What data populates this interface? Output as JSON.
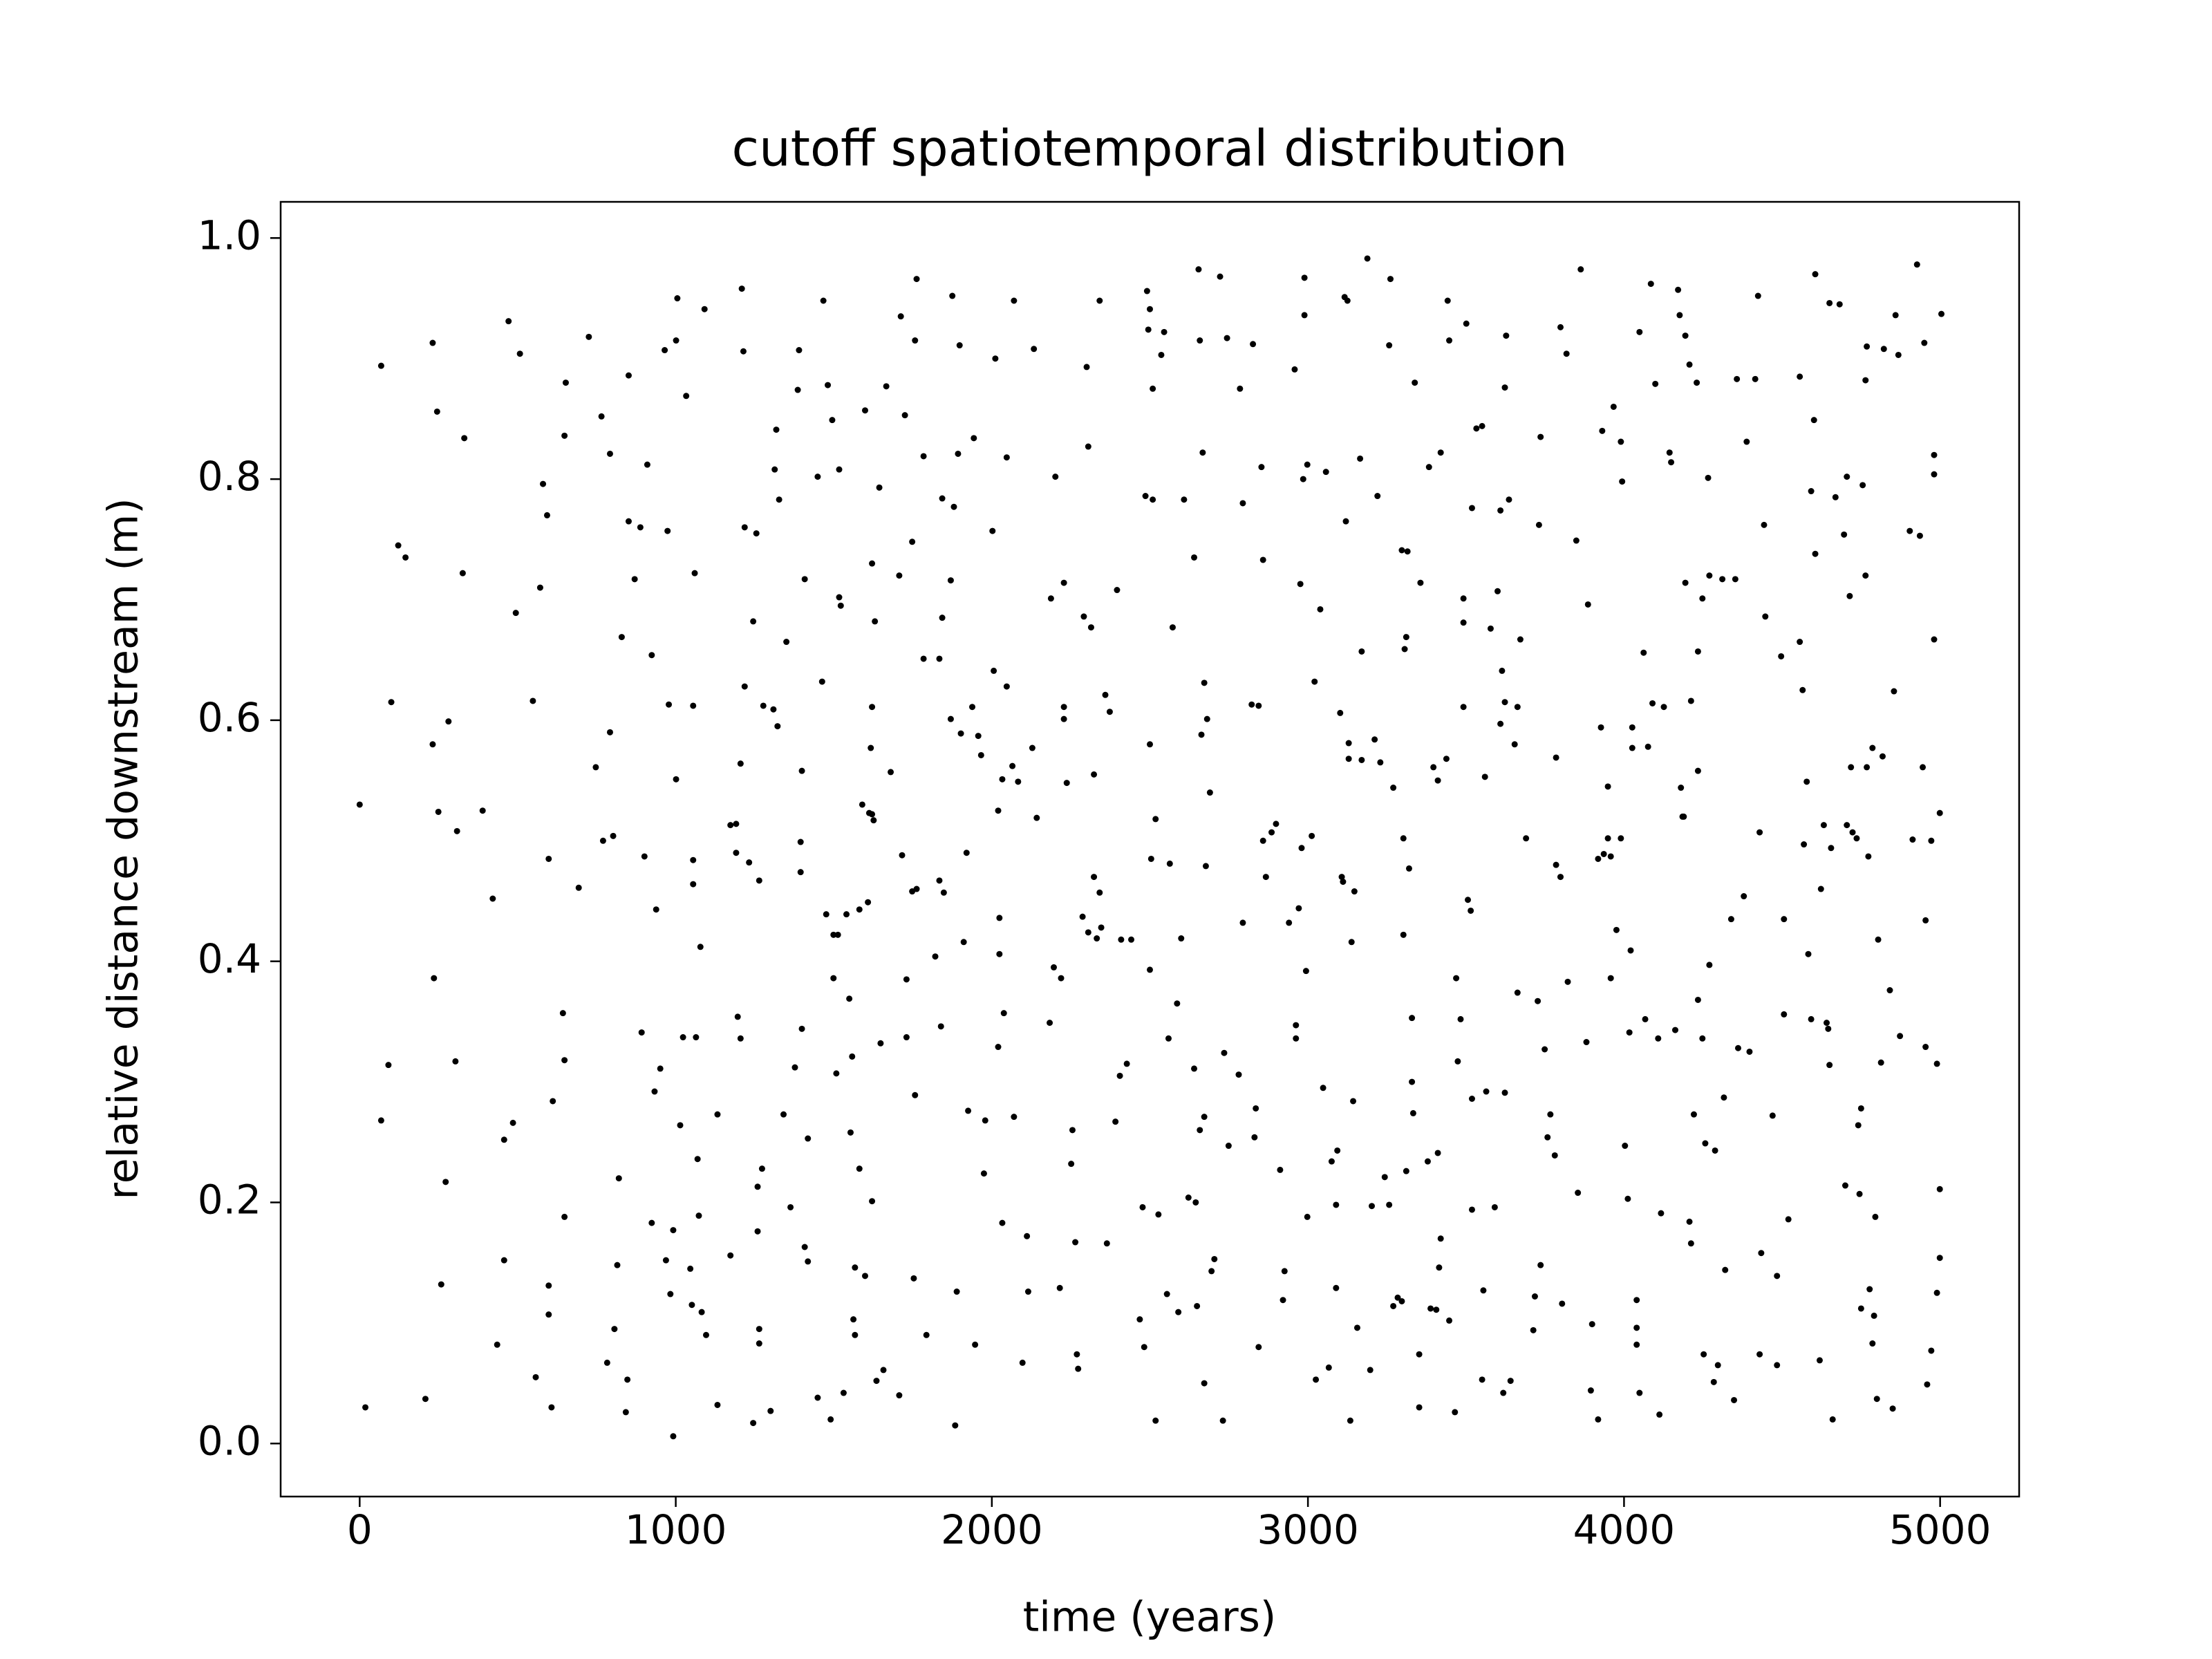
{
  "chart_data": {
    "type": "scatter",
    "title": "cutoff spatiotemporal distribution",
    "xlabel": "time (years)",
    "ylabel": "relative distance downstream (m)",
    "color": "#000000",
    "xlim": [
      -250,
      5250
    ],
    "ylim": [
      -0.044,
      1.03
    ],
    "xticks": [
      0,
      1000,
      2000,
      3000,
      4000,
      5000
    ],
    "yticks": [
      {
        "value": 0,
        "label": "0.0"
      },
      0.2,
      0.4,
      0.6,
      0.8,
      {
        "value": 1,
        "label": "1.0"
      }
    ],
    "x": [
      0,
      18,
      68,
      68,
      91,
      100,
      122,
      145,
      208,
      231,
      231,
      235,
      245,
      249,
      258,
      272,
      281,
      303,
      308,
      326,
      331,
      389,
      421,
      435,
      457,
      457,
      471,
      485,
      494,
      507,
      548,
      557,
      571,
      580,
      593,
      598,
      598,
      598,
      607,
      611,
      643,
      648,
      648,
      652,
      648,
      693,
      725,
      747,
      765,
      770,
      783,
      792,
      792,
      802,
      806,
      815,
      820,
      829,
      842,
      847,
      851,
      851,
      870,
      888,
      892,
      901,
      910,
      924,
      924,
      933,
      938,
      951,
      965,
      969,
      974,
      978,
      983,
      992,
      992,
      1001,
      1005,
      1001,
      1014,
      1023,
      1033,
      1046,
      1051,
      1055,
      1055,
      1055,
      1060,
      1064,
      1069,
      1073,
      1078,
      1082,
      1091,
      1096,
      1132,
      1132,
      1173,
      1173,
      1191,
      1191,
      1196,
      1205,
      1205,
      1209,
      1214,
      1218,
      1218,
      1232,
      1245,
      1245,
      1255,
      1259,
      1259,
      1264,
      1264,
      1264,
      1273,
      1277,
      1300,
      1309,
      1313,
      1318,
      1322,
      1327,
      1341,
      1350,
      1363,
      1377,
      1386,
      1390,
      1395,
      1395,
      1399,
      1399,
      1408,
      1408,
      1418,
      1418,
      1449,
      1449,
      1463,
      1467,
      1476,
      1481,
      1490,
      1495,
      1499,
      1499,
      1508,
      1517,
      1522,
      1517,
      1513,
      1531,
      1540,
      1549,
      1553,
      1558,
      1562,
      1567,
      1567,
      1581,
      1581,
      1590,
      1599,
      1599,
      1608,
      1612,
      1617,
      1621,
      1621,
      1621,
      1621,
      1626,
      1630,
      1635,
      1644,
      1648,
      1657,
      1666,
      1680,
      1707,
      1707,
      1712,
      1716,
      1725,
      1730,
      1730,
      1748,
      1753,
      1757,
      1757,
      1748,
      1762,
      1784,
      1784,
      1793,
      1762,
      1821,
      1834,
      1839,
      1843,
      1843,
      1834,
      1848,
      1870,
      1870,
      1875,
      1880,
      1889,
      1884,
      1893,
      1898,
      1902,
      1911,
      1920,
      1925,
      1943,
      1938,
      1947,
      1957,
      1966,
      1975,
      1979,
      2002,
      2006,
      2011,
      2020,
      2020,
      2024,
      2024,
      2033,
      2033,
      2038,
      2047,
      2047,
      2065,
      2070,
      2070,
      2083,
      2097,
      2111,
      2115,
      2128,
      2133,
      2142,
      2183,
      2187,
      2196,
      2201,
      2215,
      2219,
      2228,
      2228,
      2228,
      2237,
      2251,
      2255,
      2264,
      2269,
      2273,
      2287,
      2291,
      2300,
      2305,
      2305,
      2314,
      2323,
      2323,
      2332,
      2341,
      2341,
      2346,
      2359,
      2364,
      2373,
      2391,
      2396,
      2405,
      2409,
      2427,
      2441,
      2468,
      2477,
      2482,
      2486,
      2491,
      2495,
      2500,
      2500,
      2500,
      2504,
      2509,
      2509,
      2518,
      2518,
      2527,
      2536,
      2545,
      2554,
      2559,
      2563,
      2572,
      2586,
      2590,
      2599,
      2608,
      2622,
      2640,
      2640,
      2645,
      2649,
      2654,
      2658,
      2658,
      2663,
      2667,
      2672,
      2672,
      2672,
      2677,
      2681,
      2690,
      2695,
      2704,
      2722,
      2731,
      2735,
      2744,
      2749,
      2781,
      2785,
      2794,
      2794,
      2826,
      2822,
      2831,
      2835,
      2844,
      2844,
      2853,
      2858,
      2858,
      2867,
      2885,
      2899,
      2912,
      2921,
      2926,
      2940,
      2958,
      2962,
      2962,
      2971,
      2976,
      2980,
      2985,
      2989,
      2989,
      2994,
      2998,
      2998,
      3012,
      3021,
      3025,
      3039,
      3048,
      3057,
      3066,
      3075,
      3089,
      3089,
      3093,
      3102,
      3107,
      3111,
      3116,
      3125,
      3129,
      3129,
      3120,
      3134,
      3138,
      3143,
      3147,
      3156,
      3165,
      3170,
      3170,
      3188,
      3197,
      3202,
      3211,
      3220,
      3229,
      3243,
      3257,
      3257,
      3261,
      3270,
      3270,
      3284,
      3297,
      3297,
      3302,
      3302,
      3306,
      3311,
      3311,
      3315,
      3320,
      3329,
      3329,
      3333,
      3338,
      3352,
      3352,
      3356,
      3379,
      3383,
      3388,
      3397,
      3406,
      3411,
      3411,
      3415,
      3420,
      3420,
      3438,
      3442,
      3447,
      3447,
      3465,
      3469,
      3474,
      3483,
      3492,
      3492,
      3492,
      3501,
      3506,
      3515,
      3519,
      3519,
      3533,
      3519,
      3551,
      3551,
      3560,
      3555,
      3564,
      3578,
      3591,
      3600,
      3609,
      3609,
      3614,
      3618,
      3623,
      3623,
      3623,
      3627,
      3636,
      3641,
      3654,
      3663,
      3663,
      3672,
      3690,
      3713,
      3718,
      3727,
      3731,
      3736,
      3736,
      3749,
      3758,
      3767,
      3781,
      3785,
      3785,
      3799,
      3799,
      3804,
      3818,
      3822,
      3849,
      3854,
      3863,
      3881,
      3886,
      3895,
      3899,
      3918,
      3918,
      3927,
      3931,
      3936,
      3949,
      3949,
      3958,
      3958,
      3967,
      3976,
      3990,
      3990,
      3994,
      4003,
      4012,
      4021,
      4017,
      4026,
      4026,
      4040,
      4040,
      4040,
      4049,
      4049,
      4062,
      4067,
      4076,
      4085,
      4090,
      4099,
      4108,
      4112,
      4117,
      4126,
      4144,
      4149,
      4162,
      4171,
      4180,
      4185,
      4189,
      4176,
      4194,
      4194,
      4207,
      4212,
      4207,
      4212,
      4221,
      4230,
      4234,
      4234,
      4234,
      4248,
      4248,
      4252,
      4257,
      4266,
      4270,
      4270,
      4284,
      4288,
      4297,
      4311,
      4316,
      4320,
      4339,
      4348,
      4352,
      4357,
      4361,
      4379,
      4388,
      4397,
      4415,
      4424,
      4429,
      4429,
      4434,
      4443,
      4447,
      4470,
      4484,
      4484,
      4497,
      4506,
      4506,
      4520,
      4556,
      4556,
      4565,
      4569,
      4578,
      4583,
      4592,
      4592,
      4601,
      4605,
      4605,
      4619,
      4623,
      4632,
      4641,
      4646,
      4650,
      4650,
      4655,
      4660,
      4669,
      4682,
      4696,
      4700,
      4705,
      4705,
      4714,
      4718,
      4723,
      4736,
      4741,
      4745,
      4750,
      4750,
      4755,
      4764,
      4764,
      4768,
      4768,
      4773,
      4777,
      4786,
      4786,
      4791,
      4795,
      4800,
      4804,
      4813,
      4818,
      4822,
      4841,
      4850,
      4854,
      4859,
      4868,
      4873,
      4904,
      4913,
      4927,
      4936,
      4945,
      4950,
      4954,
      4954,
      4959,
      4972,
      4972,
      4981,
      4981,
      4981,
      4990,
      4990,
      4999,
      4999,
      4999,
      5004
    ],
    "y": [
      0.53,
      0.03,
      0.894,
      0.268,
      0.314,
      0.615,
      0.745,
      0.735,
      0.037,
      0.913,
      0.58,
      0.386,
      0.856,
      0.524,
      0.132,
      0.217,
      0.599,
      0.317,
      0.508,
      0.722,
      0.834,
      0.525,
      0.452,
      0.082,
      0.152,
      0.252,
      0.931,
      0.266,
      0.689,
      0.904,
      0.616,
      0.055,
      0.71,
      0.796,
      0.77,
      0.485,
      0.131,
      0.107,
      0.03,
      0.284,
      0.357,
      0.318,
      0.188,
      0.88,
      0.836,
      0.461,
      0.918,
      0.561,
      0.852,
      0.5,
      0.067,
      0.821,
      0.59,
      0.504,
      0.095,
      0.148,
      0.22,
      0.669,
      0.026,
      0.053,
      0.886,
      0.765,
      0.717,
      0.76,
      0.341,
      0.487,
      0.812,
      0.654,
      0.183,
      0.292,
      0.443,
      0.311,
      0.907,
      0.152,
      0.757,
      0.613,
      0.124,
      0.006,
      0.177,
      0.915,
      0.95,
      0.551,
      0.264,
      0.337,
      0.869,
      0.145,
      0.115,
      0.484,
      0.464,
      0.612,
      0.722,
      0.337,
      0.236,
      0.189,
      0.412,
      0.109,
      0.941,
      0.09,
      0.273,
      0.032,
      0.156,
      0.513,
      0.514,
      0.49,
      0.354,
      0.336,
      0.564,
      0.958,
      0.906,
      0.76,
      0.628,
      0.482,
      0.682,
      0.017,
      0.755,
      0.213,
      0.176,
      0.095,
      0.083,
      0.467,
      0.228,
      0.612,
      0.027,
      0.609,
      0.808,
      0.841,
      0.595,
      0.783,
      0.273,
      0.665,
      0.196,
      0.312,
      0.874,
      0.907,
      0.499,
      0.474,
      0.344,
      0.558,
      0.717,
      0.163,
      0.151,
      0.253,
      0.038,
      0.802,
      0.632,
      0.948,
      0.439,
      0.878,
      0.02,
      0.849,
      0.386,
      0.422,
      0.307,
      0.808,
      0.695,
      0.702,
      0.422,
      0.042,
      0.439,
      0.369,
      0.258,
      0.321,
      0.103,
      0.146,
      0.09,
      0.443,
      0.228,
      0.53,
      0.857,
      0.139,
      0.449,
      0.523,
      0.577,
      0.73,
      0.522,
      0.201,
      0.611,
      0.517,
      0.682,
      0.052,
      0.793,
      0.332,
      0.061,
      0.877,
      0.557,
      0.72,
      0.04,
      0.935,
      0.488,
      0.853,
      0.385,
      0.337,
      0.748,
      0.137,
      0.915,
      0.289,
      0.458,
      0.46,
      0.651,
      0.819,
      0.09,
      0.966,
      0.404,
      0.651,
      0.346,
      0.784,
      0.685,
      0.467,
      0.457,
      0.716,
      0.601,
      0.952,
      0.777,
      0.126,
      0.015,
      0.821,
      0.911,
      0.589,
      0.416,
      0.49,
      0.276,
      0.834,
      0.611,
      0.082,
      0.587,
      0.571,
      0.224,
      0.268,
      0.757,
      0.641,
      0.9,
      0.329,
      0.525,
      0.436,
      0.406,
      0.551,
      0.183,
      0.357,
      0.818,
      0.628,
      0.562,
      0.948,
      0.271,
      0.549,
      0.067,
      0.172,
      0.126,
      0.577,
      0.908,
      0.519,
      0.349,
      0.701,
      0.395,
      0.802,
      0.129,
      0.386,
      0.714,
      0.601,
      0.611,
      0.548,
      0.232,
      0.26,
      0.167,
      0.074,
      0.062,
      0.437,
      0.686,
      0.893,
      0.827,
      0.424,
      0.677,
      0.47,
      0.555,
      0.419,
      0.457,
      0.948,
      0.428,
      0.621,
      0.166,
      0.607,
      0.267,
      0.708,
      0.305,
      0.418,
      0.315,
      0.418,
      0.103,
      0.196,
      0.08,
      0.786,
      0.956,
      0.924,
      0.941,
      0.58,
      0.393,
      0.485,
      0.783,
      0.875,
      0.019,
      0.518,
      0.19,
      0.903,
      0.922,
      0.124,
      0.336,
      0.481,
      0.677,
      0.365,
      0.109,
      0.419,
      0.783,
      0.204,
      0.735,
      0.311,
      0.2,
      0.114,
      0.974,
      0.915,
      0.26,
      0.588,
      0.822,
      0.271,
      0.631,
      0.05,
      0.479,
      0.601,
      0.54,
      0.143,
      0.153,
      0.968,
      0.019,
      0.324,
      0.917,
      0.247,
      0.306,
      0.875,
      0.432,
      0.78,
      0.912,
      0.613,
      0.254,
      0.278,
      0.612,
      0.08,
      0.81,
      0.5,
      0.733,
      0.47,
      0.507,
      0.514,
      0.227,
      0.119,
      0.143,
      0.432,
      0.891,
      0.336,
      0.347,
      0.444,
      0.713,
      0.494,
      0.8,
      0.967,
      0.936,
      0.392,
      0.188,
      0.812,
      0.504,
      0.632,
      0.053,
      0.692,
      0.295,
      0.806,
      0.063,
      0.234,
      0.129,
      0.198,
      0.243,
      0.606,
      0.47,
      0.466,
      0.951,
      0.948,
      0.581,
      0.568,
      0.765,
      0.019,
      0.416,
      0.284,
      0.458,
      0.096,
      0.817,
      0.657,
      0.567,
      0.983,
      0.061,
      0.197,
      0.584,
      0.786,
      0.565,
      0.221,
      0.198,
      0.911,
      0.966,
      0.114,
      0.544,
      0.121,
      0.741,
      0.118,
      0.502,
      0.422,
      0.659,
      0.669,
      0.226,
      0.74,
      0.477,
      0.353,
      0.3,
      0.274,
      0.88,
      0.03,
      0.074,
      0.714,
      0.234,
      0.81,
      0.112,
      0.561,
      0.111,
      0.55,
      0.241,
      0.146,
      0.17,
      0.822,
      0.568,
      0.948,
      0.915,
      0.102,
      0.026,
      0.386,
      0.317,
      0.352,
      0.681,
      0.701,
      0.611,
      0.929,
      0.451,
      0.442,
      0.776,
      0.194,
      0.842,
      0.286,
      0.844,
      0.053,
      0.553,
      0.127,
      0.292,
      0.676,
      0.196,
      0.707,
      0.774,
      0.597,
      0.641,
      0.042,
      0.291,
      0.615,
      0.876,
      0.919,
      0.783,
      0.052,
      0.58,
      0.611,
      0.374,
      0.667,
      0.502,
      0.094,
      0.122,
      0.367,
      0.762,
      0.148,
      0.835,
      0.327,
      0.254,
      0.273,
      0.239,
      0.48,
      0.569,
      0.47,
      0.926,
      0.116,
      0.904,
      0.383,
      0.749,
      0.208,
      0.974,
      0.333,
      0.696,
      0.044,
      0.099,
      0.02,
      0.485,
      0.594,
      0.84,
      0.489,
      0.545,
      0.502,
      0.487,
      0.386,
      0.86,
      0.426,
      0.831,
      0.502,
      0.798,
      0.247,
      0.203,
      0.409,
      0.341,
      0.594,
      0.577,
      0.119,
      0.096,
      0.082,
      0.042,
      0.922,
      0.656,
      0.352,
      0.578,
      0.962,
      0.614,
      0.879,
      0.336,
      0.024,
      0.191,
      0.611,
      0.822,
      0.814,
      0.343,
      0.957,
      0.544,
      0.52,
      0.52,
      0.936,
      0.919,
      0.714,
      0.184,
      0.166,
      0.895,
      0.616,
      0.273,
      0.88,
      0.368,
      0.657,
      0.558,
      0.701,
      0.336,
      0.074,
      0.249,
      0.801,
      0.397,
      0.72,
      0.051,
      0.243,
      0.065,
      0.717,
      0.287,
      0.144,
      0.435,
      0.036,
      0.717,
      0.883,
      0.328,
      0.454,
      0.831,
      0.325,
      0.883,
      0.952,
      0.074,
      0.507,
      0.158,
      0.762,
      0.686,
      0.272,
      0.065,
      0.139,
      0.653,
      0.435,
      0.356,
      0.186,
      0.665,
      0.885,
      0.625,
      0.497,
      0.549,
      0.406,
      0.79,
      0.352,
      0.849,
      0.97,
      0.738,
      0.069,
      0.46,
      0.513,
      0.349,
      0.344,
      0.946,
      0.314,
      0.494,
      0.02,
      0.785,
      0.945,
      0.754,
      0.214,
      0.513,
      0.802,
      0.703,
      0.561,
      0.507,
      0.502,
      0.264,
      0.207,
      0.278,
      0.112,
      0.795,
      0.72,
      0.882,
      0.91,
      0.561,
      0.487,
      0.128,
      0.577,
      0.083,
      0.106,
      0.188,
      0.037,
      0.418,
      0.316,
      0.57,
      0.908,
      0.376,
      0.029,
      0.624,
      0.936,
      0.903,
      0.338,
      0.757,
      0.501,
      0.978,
      0.753,
      0.561,
      0.913,
      0.434,
      0.329,
      0.049,
      0.077,
      0.5,
      0.667,
      0.82,
      0.804,
      0.315,
      0.125,
      0.211,
      0.154,
      0.523,
      0.937
    ]
  }
}
